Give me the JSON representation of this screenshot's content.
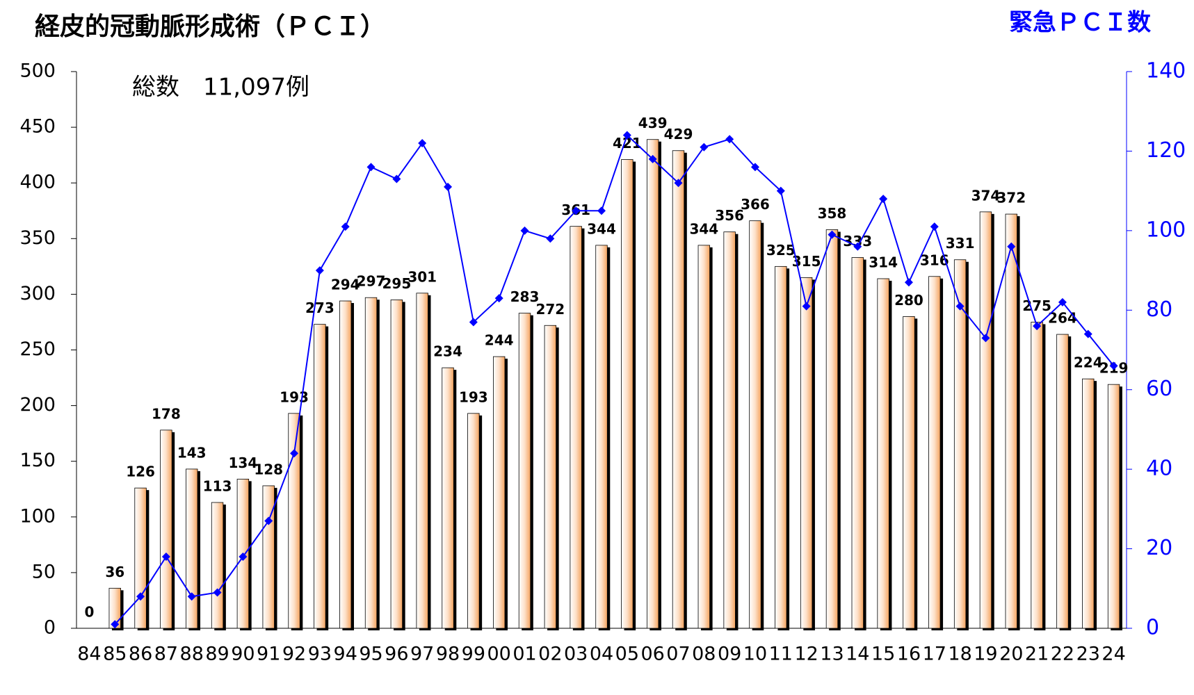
{
  "chart_data": {
    "type": "bar-line",
    "title": "経皮的冠動脈形成術（ＰＣＩ）",
    "annotation": "総数　11,097例",
    "categories": [
      "84",
      "85",
      "86",
      "87",
      "88",
      "89",
      "90",
      "91",
      "92",
      "93",
      "94",
      "95",
      "96",
      "97",
      "98",
      "99",
      "00",
      "01",
      "02",
      "03",
      "04",
      "05",
      "06",
      "07",
      "08",
      "09",
      "10",
      "11",
      "12",
      "13",
      "14",
      "15",
      "16",
      "17",
      "18",
      "19",
      "20",
      "21",
      "22",
      "23",
      "24"
    ],
    "series": [
      {
        "type": "bar",
        "color": "#f4a460",
        "values": [
          0,
          36,
          126,
          178,
          143,
          113,
          134,
          128,
          193,
          273,
          294,
          297,
          295,
          301,
          234,
          193,
          244,
          283,
          272,
          361,
          344,
          421,
          439,
          429,
          344,
          356,
          366,
          325,
          315,
          358,
          333,
          314,
          280,
          316,
          331,
          374,
          372,
          275,
          264,
          224,
          219
        ]
      },
      {
        "type": "line",
        "name": "緊急ＰＣＩ数",
        "color": "#0000ff",
        "axis": "y2",
        "values": [
          null,
          1,
          8,
          18,
          8,
          9,
          18,
          27,
          44,
          90,
          101,
          116,
          113,
          122,
          111,
          77,
          83,
          100,
          98,
          105,
          105,
          124,
          118,
          112,
          121,
          123,
          116,
          110,
          81,
          99,
          96,
          108,
          87,
          101,
          81,
          73,
          96,
          76,
          82,
          74,
          66
        ]
      }
    ],
    "ylim": [
      0,
      500
    ],
    "yticks": [
      0,
      50,
      100,
      150,
      200,
      250,
      300,
      350,
      400,
      450,
      500
    ],
    "y2lim": [
      0,
      140
    ],
    "y2ticks": [
      0,
      20,
      40,
      60,
      80,
      100,
      120,
      140
    ],
    "grid": false
  }
}
